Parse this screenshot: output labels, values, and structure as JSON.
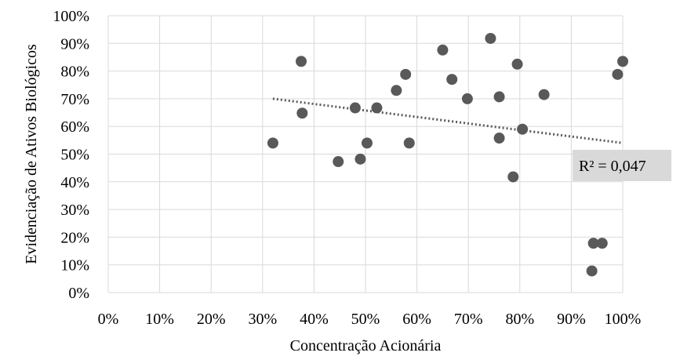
{
  "chart_data": {
    "type": "scatter",
    "xlabel": "Concentração Acionária",
    "ylabel": "Evidenciação de Ativos Biológicos",
    "xlim": [
      0,
      1
    ],
    "ylim": [
      0,
      1
    ],
    "x_ticks": [
      "0%",
      "10%",
      "20%",
      "30%",
      "40%",
      "50%",
      "60%",
      "70%",
      "80%",
      "90%",
      "100%"
    ],
    "y_ticks": [
      "0%",
      "10%",
      "20%",
      "30%",
      "40%",
      "50%",
      "60%",
      "70%",
      "80%",
      "90%",
      "100%"
    ],
    "grid": true,
    "legend": "none",
    "marker_color": "#595959",
    "trendline": {
      "style": "dotted",
      "color": "#595959",
      "x_start": 0.32,
      "y_start": 0.7,
      "x_end": 1.0,
      "y_end": 0.54,
      "r2_label": "R² = 0,047"
    },
    "points": [
      {
        "x": 0.32,
        "y": 0.54
      },
      {
        "x": 0.375,
        "y": 0.835
      },
      {
        "x": 0.377,
        "y": 0.648
      },
      {
        "x": 0.447,
        "y": 0.473
      },
      {
        "x": 0.48,
        "y": 0.667
      },
      {
        "x": 0.49,
        "y": 0.482
      },
      {
        "x": 0.503,
        "y": 0.54
      },
      {
        "x": 0.522,
        "y": 0.667
      },
      {
        "x": 0.56,
        "y": 0.73
      },
      {
        "x": 0.578,
        "y": 0.788
      },
      {
        "x": 0.585,
        "y": 0.54
      },
      {
        "x": 0.65,
        "y": 0.876
      },
      {
        "x": 0.668,
        "y": 0.77
      },
      {
        "x": 0.698,
        "y": 0.7
      },
      {
        "x": 0.743,
        "y": 0.918
      },
      {
        "x": 0.76,
        "y": 0.707
      },
      {
        "x": 0.76,
        "y": 0.558
      },
      {
        "x": 0.787,
        "y": 0.418
      },
      {
        "x": 0.795,
        "y": 0.825
      },
      {
        "x": 0.805,
        "y": 0.59
      },
      {
        "x": 0.847,
        "y": 0.715
      },
      {
        "x": 0.94,
        "y": 0.078
      },
      {
        "x": 0.943,
        "y": 0.178
      },
      {
        "x": 0.96,
        "y": 0.178
      },
      {
        "x": 0.99,
        "y": 0.788
      },
      {
        "x": 1.0,
        "y": 0.835
      }
    ]
  }
}
